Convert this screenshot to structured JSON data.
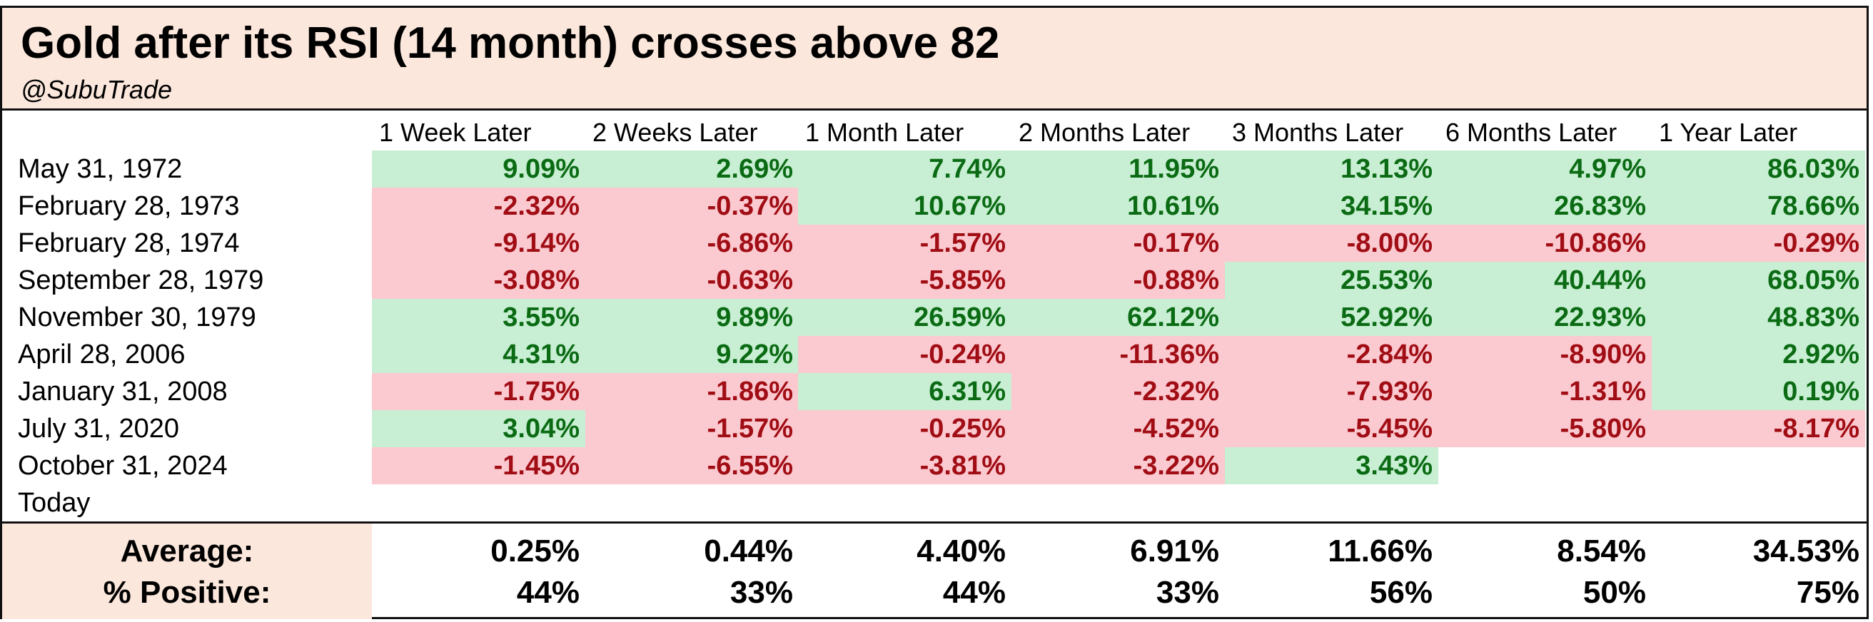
{
  "title": "Gold after its RSI (14 month) crosses above 82",
  "subtitle": "@SubuTrade",
  "colors": {
    "positive_bg": "#c8efd3",
    "positive_text": "#0b6b14",
    "negative_bg": "#fbc9d0",
    "negative_text": "#a10d14",
    "header_bg": "#fbe7dc"
  },
  "chart_data": {
    "type": "table",
    "title": "Gold after its RSI (14 month) crosses above 82",
    "columns": [
      "1 Week Later",
      "2 Weeks Later",
      "1 Month Later",
      "2 Months Later",
      "3 Months Later",
      "6 Months Later",
      "1 Year Later"
    ],
    "rows": [
      {
        "label": "May 31, 1972",
        "values": [
          "9.09%",
          "2.69%",
          "7.74%",
          "11.95%",
          "13.13%",
          "4.97%",
          "86.03%"
        ]
      },
      {
        "label": "February 28, 1973",
        "values": [
          "-2.32%",
          "-0.37%",
          "10.67%",
          "10.61%",
          "34.15%",
          "26.83%",
          "78.66%"
        ]
      },
      {
        "label": "February 28, 1974",
        "values": [
          "-9.14%",
          "-6.86%",
          "-1.57%",
          "-0.17%",
          "-8.00%",
          "-10.86%",
          "-0.29%"
        ]
      },
      {
        "label": "September 28, 1979",
        "values": [
          "-3.08%",
          "-0.63%",
          "-5.85%",
          "-0.88%",
          "25.53%",
          "40.44%",
          "68.05%"
        ]
      },
      {
        "label": "November 30, 1979",
        "values": [
          "3.55%",
          "9.89%",
          "26.59%",
          "62.12%",
          "52.92%",
          "22.93%",
          "48.83%"
        ]
      },
      {
        "label": "April 28, 2006",
        "values": [
          "4.31%",
          "9.22%",
          "-0.24%",
          "-11.36%",
          "-2.84%",
          "-8.90%",
          "2.92%"
        ]
      },
      {
        "label": "January 31, 2008",
        "values": [
          "-1.75%",
          "-1.86%",
          "6.31%",
          "-2.32%",
          "-7.93%",
          "-1.31%",
          "0.19%"
        ]
      },
      {
        "label": "July 31, 2020",
        "values": [
          "3.04%",
          "-1.57%",
          "-0.25%",
          "-4.52%",
          "-5.45%",
          "-5.80%",
          "-8.17%"
        ]
      },
      {
        "label": "October 31, 2024",
        "values": [
          "-1.45%",
          "-6.55%",
          "-3.81%",
          "-3.22%",
          "3.43%",
          "",
          ""
        ]
      },
      {
        "label": "Today",
        "values": [
          "",
          "",
          "",
          "",
          "",
          "",
          ""
        ]
      }
    ],
    "summary": [
      {
        "label": "Average:",
        "values": [
          "0.25%",
          "0.44%",
          "4.40%",
          "6.91%",
          "11.66%",
          "8.54%",
          "34.53%"
        ]
      },
      {
        "label": "% Positive:",
        "values": [
          "44%",
          "33%",
          "44%",
          "33%",
          "56%",
          "50%",
          "75%"
        ]
      }
    ]
  }
}
